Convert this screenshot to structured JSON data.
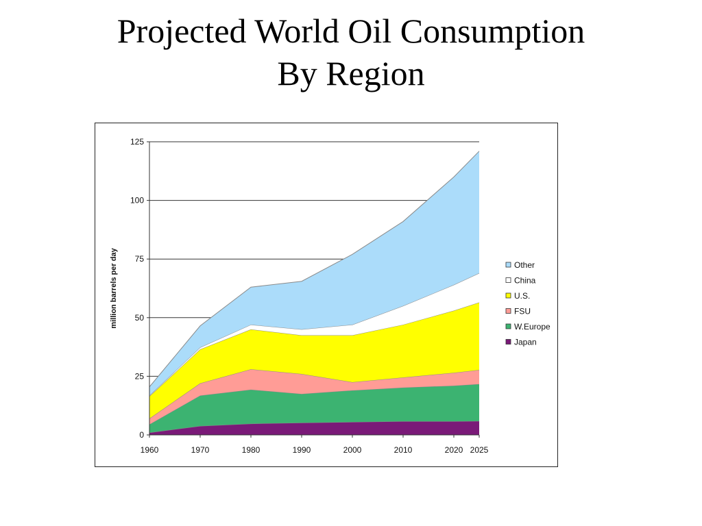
{
  "slide": {
    "title_line1": "Projected World Oil Consumption",
    "title_line2": "By Region"
  },
  "chart_data": {
    "type": "area",
    "stacked": true,
    "title": "Projected World Oil Consumption By Region",
    "xlabel": "",
    "ylabel": "million barrels per day",
    "x": [
      "1960",
      "1970",
      "1980",
      "1990",
      "2000",
      "2010",
      "2020",
      "2025"
    ],
    "ylim": [
      0,
      125
    ],
    "yticks": [
      0,
      25,
      50,
      75,
      100,
      125
    ],
    "grid": "horizontal",
    "legend_position": "right",
    "series": [
      {
        "name": "Japan",
        "color": "#7a1a78",
        "values": [
          1,
          3.8,
          4.8,
          5.2,
          5.5,
          5.8,
          5.8,
          5.9
        ]
      },
      {
        "name": "W.Europe",
        "color": "#3cb371",
        "values": [
          3.5,
          13,
          14.5,
          12.3,
          13.5,
          14.4,
          15.2,
          15.8
        ]
      },
      {
        "name": "FSU",
        "color": "#ff9c96",
        "values": [
          2.5,
          5.2,
          8.7,
          8.5,
          3.5,
          4.3,
          5.5,
          6.0
        ]
      },
      {
        "name": "U.S.",
        "color": "#ffff00",
        "values": [
          9.5,
          14.5,
          17,
          16.5,
          20,
          22.5,
          26.5,
          28.8
        ]
      },
      {
        "name": "China",
        "color": "#ffffff",
        "values": [
          0.3,
          0.8,
          2,
          2.5,
          4.5,
          8,
          11,
          12.5
        ]
      },
      {
        "name": "Other",
        "color": "#abdcfa",
        "values": [
          3.7,
          9.2,
          16,
          20.5,
          30,
          36,
          46,
          52
        ]
      }
    ],
    "legend_order": [
      "Other",
      "China",
      "U.S.",
      "FSU",
      "W.Europe",
      "Japan"
    ]
  }
}
